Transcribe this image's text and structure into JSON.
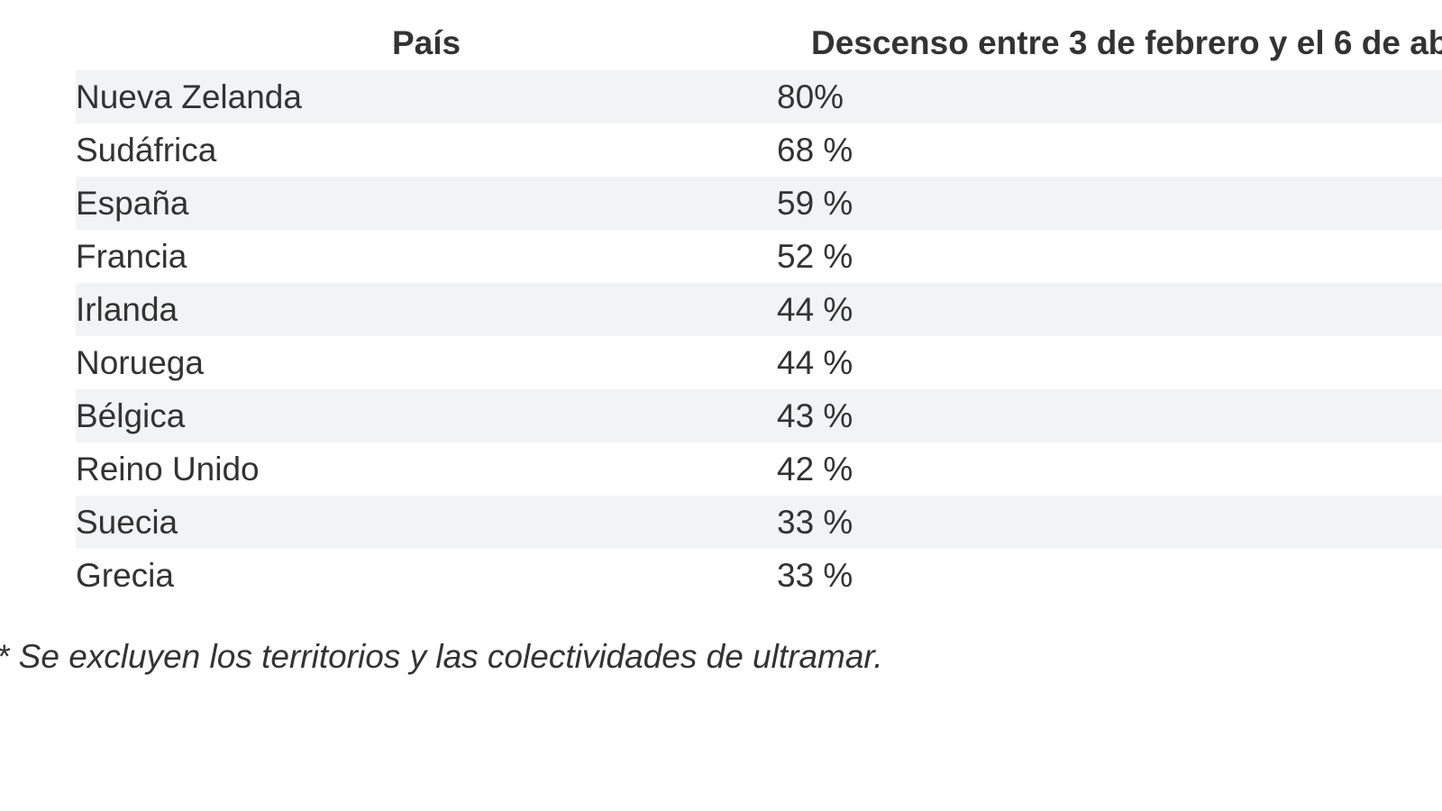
{
  "table": {
    "headers": {
      "country": "País",
      "decline": "Descenso entre 3 de febrero y el 6 de ab"
    },
    "rows": [
      {
        "country": "Nueva Zelanda",
        "decline": "80%"
      },
      {
        "country": "Sudáfrica",
        "decline": "68 %"
      },
      {
        "country": "España",
        "decline": "59 %"
      },
      {
        "country": "Francia",
        "decline": "52 %"
      },
      {
        "country": "Irlanda",
        "decline": "44 %"
      },
      {
        "country": "Noruega",
        "decline": "44 %"
      },
      {
        "country": "Bélgica",
        "decline": "43 %"
      },
      {
        "country": "Reino Unido",
        "decline": "42 %"
      },
      {
        "country": "Suecia",
        "decline": "33 %"
      },
      {
        "country": "Grecia",
        "decline": "33 %"
      }
    ]
  },
  "footnote": "* Se excluyen los territorios y las colectividades de ultramar.",
  "colors": {
    "row_stripe": "#f2f3f4",
    "text": "#333333",
    "background": "#ffffff"
  }
}
